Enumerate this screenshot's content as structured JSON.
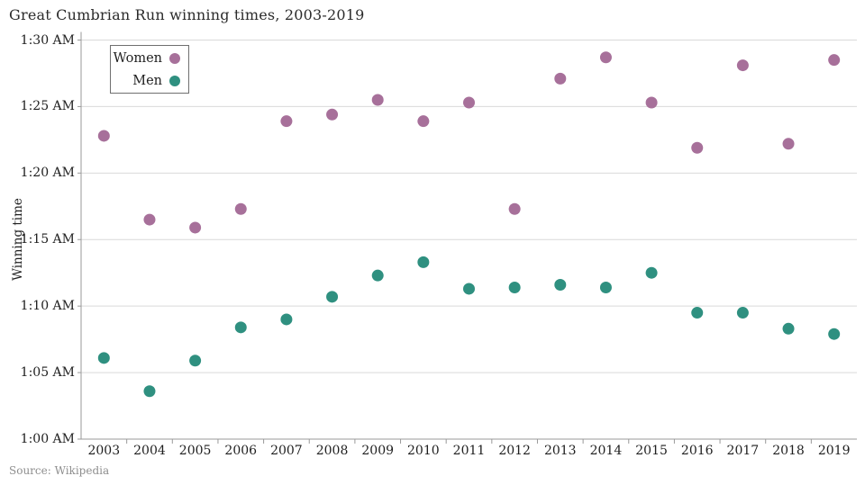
{
  "title": "Great Cumbrian Run winning times, 2003-2019",
  "source": "Source: Wikipedia",
  "legend": {
    "items": [
      {
        "label": "Women",
        "color": "#a7709a"
      },
      {
        "label": "Men",
        "color": "#2f9080"
      }
    ],
    "position": "top-left-inside",
    "border_color": "#6f6f6f"
  },
  "colors": {
    "women": "#a7709a",
    "men": "#2f9080",
    "gridline": "#d9d9d9",
    "axis": "#9a9a9a",
    "text": "#1f1f1f",
    "source_text": "#8e8e8e"
  },
  "chart_data": {
    "type": "scatter",
    "title": "Great Cumbrian Run winning times, 2003-2019",
    "xlabel": "",
    "ylabel": "Winning time",
    "x": [
      2003,
      2004,
      2005,
      2006,
      2007,
      2008,
      2009,
      2010,
      2011,
      2012,
      2013,
      2014,
      2015,
      2016,
      2017,
      2018,
      2019
    ],
    "y_unit": "time of day, minutes past 12:00 AM (60 = 1:00 AM)",
    "ylim_minutes": [
      60,
      90
    ],
    "y_ticks": [
      {
        "label": "1:30 AM",
        "minutes": 90
      },
      {
        "label": "1:25 AM",
        "minutes": 85
      },
      {
        "label": "1:20 AM",
        "minutes": 80
      },
      {
        "label": "1:15 AM",
        "minutes": 75
      },
      {
        "label": "1:10 AM",
        "minutes": 70
      },
      {
        "label": "1:05 AM",
        "minutes": 65
      },
      {
        "label": "1:00 AM",
        "minutes": 60
      }
    ],
    "grid": "horizontal-only",
    "marker": {
      "shape": "circle",
      "radius_px": 6.5
    },
    "series": [
      {
        "name": "Women",
        "color": "#a7709a",
        "values_minutes": [
          82.8,
          76.5,
          75.9,
          77.3,
          83.9,
          84.4,
          85.5,
          83.9,
          85.3,
          77.3,
          87.1,
          88.7,
          85.3,
          81.9,
          88.1,
          82.2,
          88.5
        ]
      },
      {
        "name": "Men",
        "color": "#2f9080",
        "values_minutes": [
          66.1,
          63.6,
          65.9,
          68.4,
          69.0,
          70.7,
          72.3,
          73.3,
          71.3,
          71.4,
          71.6,
          71.4,
          72.5,
          69.5,
          69.5,
          68.3,
          67.9
        ]
      }
    ]
  }
}
